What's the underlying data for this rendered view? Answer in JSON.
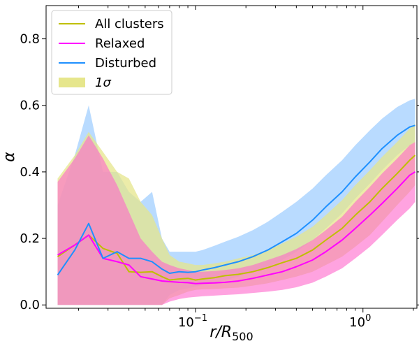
{
  "chart_data": {
    "type": "area",
    "xscale": "log",
    "xlim": [
      0.0128,
      2.1
    ],
    "ylim": [
      -0.01,
      0.9
    ],
    "xlabel": "r/R",
    "xlabel_sub": "500",
    "ylabel": "α",
    "grid": false,
    "legend_position": "top-left",
    "xticks_major": [
      {
        "value": 0.1,
        "label_base": "10",
        "label_exp": "−1"
      },
      {
        "value": 1.0,
        "label_base": "10",
        "label_exp": "0"
      }
    ],
    "yticks": [
      {
        "value": 0.0,
        "label": "0.0"
      },
      {
        "value": 0.2,
        "label": "0.2"
      },
      {
        "value": 0.4,
        "label": "0.4"
      },
      {
        "value": 0.6,
        "label": "0.6"
      },
      {
        "value": 0.8,
        "label": "0.8"
      }
    ],
    "x": [
      0.015,
      0.019,
      0.023,
      0.028,
      0.034,
      0.04,
      0.047,
      0.055,
      0.063,
      0.07,
      0.08,
      0.09,
      0.1,
      0.11,
      0.13,
      0.15,
      0.18,
      0.22,
      0.27,
      0.33,
      0.4,
      0.5,
      0.6,
      0.75,
      0.9,
      1.1,
      1.3,
      1.6,
      1.9,
      2.05
    ],
    "series": [
      {
        "name": "All clusters",
        "color": "#bfbf00",
        "fill_color": "#e6e68c",
        "values": [
          0.145,
          0.18,
          0.21,
          0.17,
          0.155,
          0.1,
          0.098,
          0.1,
          0.085,
          0.075,
          0.078,
          0.08,
          0.075,
          0.078,
          0.082,
          0.088,
          0.092,
          0.1,
          0.112,
          0.127,
          0.14,
          0.165,
          0.195,
          0.23,
          0.27,
          0.31,
          0.35,
          0.395,
          0.435,
          0.45
        ],
        "lower": [
          0.0,
          0.0,
          0.0,
          0.0,
          0.0,
          0.0,
          0.0,
          0.0,
          0.0,
          0.02,
          0.03,
          0.04,
          0.045,
          0.047,
          0.048,
          0.05,
          0.052,
          0.058,
          0.065,
          0.075,
          0.085,
          0.1,
          0.12,
          0.145,
          0.175,
          0.21,
          0.25,
          0.3,
          0.34,
          0.36
        ],
        "upper": [
          0.38,
          0.45,
          0.52,
          0.46,
          0.4,
          0.38,
          0.31,
          0.27,
          0.2,
          0.15,
          0.13,
          0.125,
          0.12,
          0.12,
          0.125,
          0.13,
          0.14,
          0.15,
          0.165,
          0.185,
          0.205,
          0.235,
          0.27,
          0.315,
          0.36,
          0.405,
          0.445,
          0.49,
          0.53,
          0.545
        ],
        "show_band": true,
        "band_label": "1σ"
      },
      {
        "name": "Relaxed",
        "color": "#ff00ff",
        "fill_color": "#ff66cc",
        "values": [
          0.15,
          0.18,
          0.21,
          0.14,
          0.13,
          0.12,
          0.085,
          0.078,
          0.072,
          0.07,
          0.068,
          0.067,
          0.064,
          0.065,
          0.066,
          0.068,
          0.072,
          0.08,
          0.09,
          0.1,
          0.115,
          0.135,
          0.16,
          0.195,
          0.23,
          0.27,
          0.305,
          0.35,
          0.39,
          0.4
        ],
        "lower": [
          0.0,
          0.0,
          0.0,
          0.0,
          0.0,
          0.0,
          0.0,
          0.0,
          0.0,
          0.01,
          0.018,
          0.022,
          0.024,
          0.026,
          0.028,
          0.03,
          0.032,
          0.036,
          0.04,
          0.045,
          0.053,
          0.067,
          0.085,
          0.11,
          0.14,
          0.175,
          0.21,
          0.255,
          0.29,
          0.31
        ],
        "upper": [
          0.37,
          0.44,
          0.51,
          0.44,
          0.36,
          0.28,
          0.2,
          0.16,
          0.13,
          0.12,
          0.11,
          0.105,
          0.1,
          0.1,
          0.102,
          0.105,
          0.11,
          0.12,
          0.135,
          0.15,
          0.168,
          0.195,
          0.225,
          0.265,
          0.31,
          0.355,
          0.395,
          0.44,
          0.48,
          0.49
        ]
      },
      {
        "name": "Disturbed",
        "color": "#1e90ff",
        "fill_color": "#a8d2ff",
        "values": [
          0.09,
          0.165,
          0.245,
          0.14,
          0.16,
          0.14,
          0.14,
          0.13,
          0.108,
          0.095,
          0.1,
          0.098,
          0.1,
          0.105,
          0.112,
          0.12,
          0.13,
          0.145,
          0.165,
          0.19,
          0.215,
          0.255,
          0.295,
          0.34,
          0.385,
          0.43,
          0.47,
          0.51,
          0.535,
          0.54
        ],
        "lower": [
          0.0,
          0.0,
          0.0,
          0.0,
          0.0,
          0.0,
          0.0,
          0.0,
          0.0,
          0.03,
          0.045,
          0.05,
          0.055,
          0.06,
          0.066,
          0.074,
          0.085,
          0.098,
          0.115,
          0.135,
          0.16,
          0.195,
          0.23,
          0.275,
          0.32,
          0.365,
          0.405,
          0.45,
          0.48,
          0.49
        ],
        "upper": [
          0.3,
          0.45,
          0.6,
          0.4,
          0.4,
          0.34,
          0.31,
          0.34,
          0.2,
          0.16,
          0.16,
          0.16,
          0.16,
          0.165,
          0.178,
          0.19,
          0.205,
          0.225,
          0.25,
          0.28,
          0.31,
          0.35,
          0.39,
          0.435,
          0.48,
          0.525,
          0.56,
          0.595,
          0.615,
          0.62
        ]
      }
    ]
  }
}
